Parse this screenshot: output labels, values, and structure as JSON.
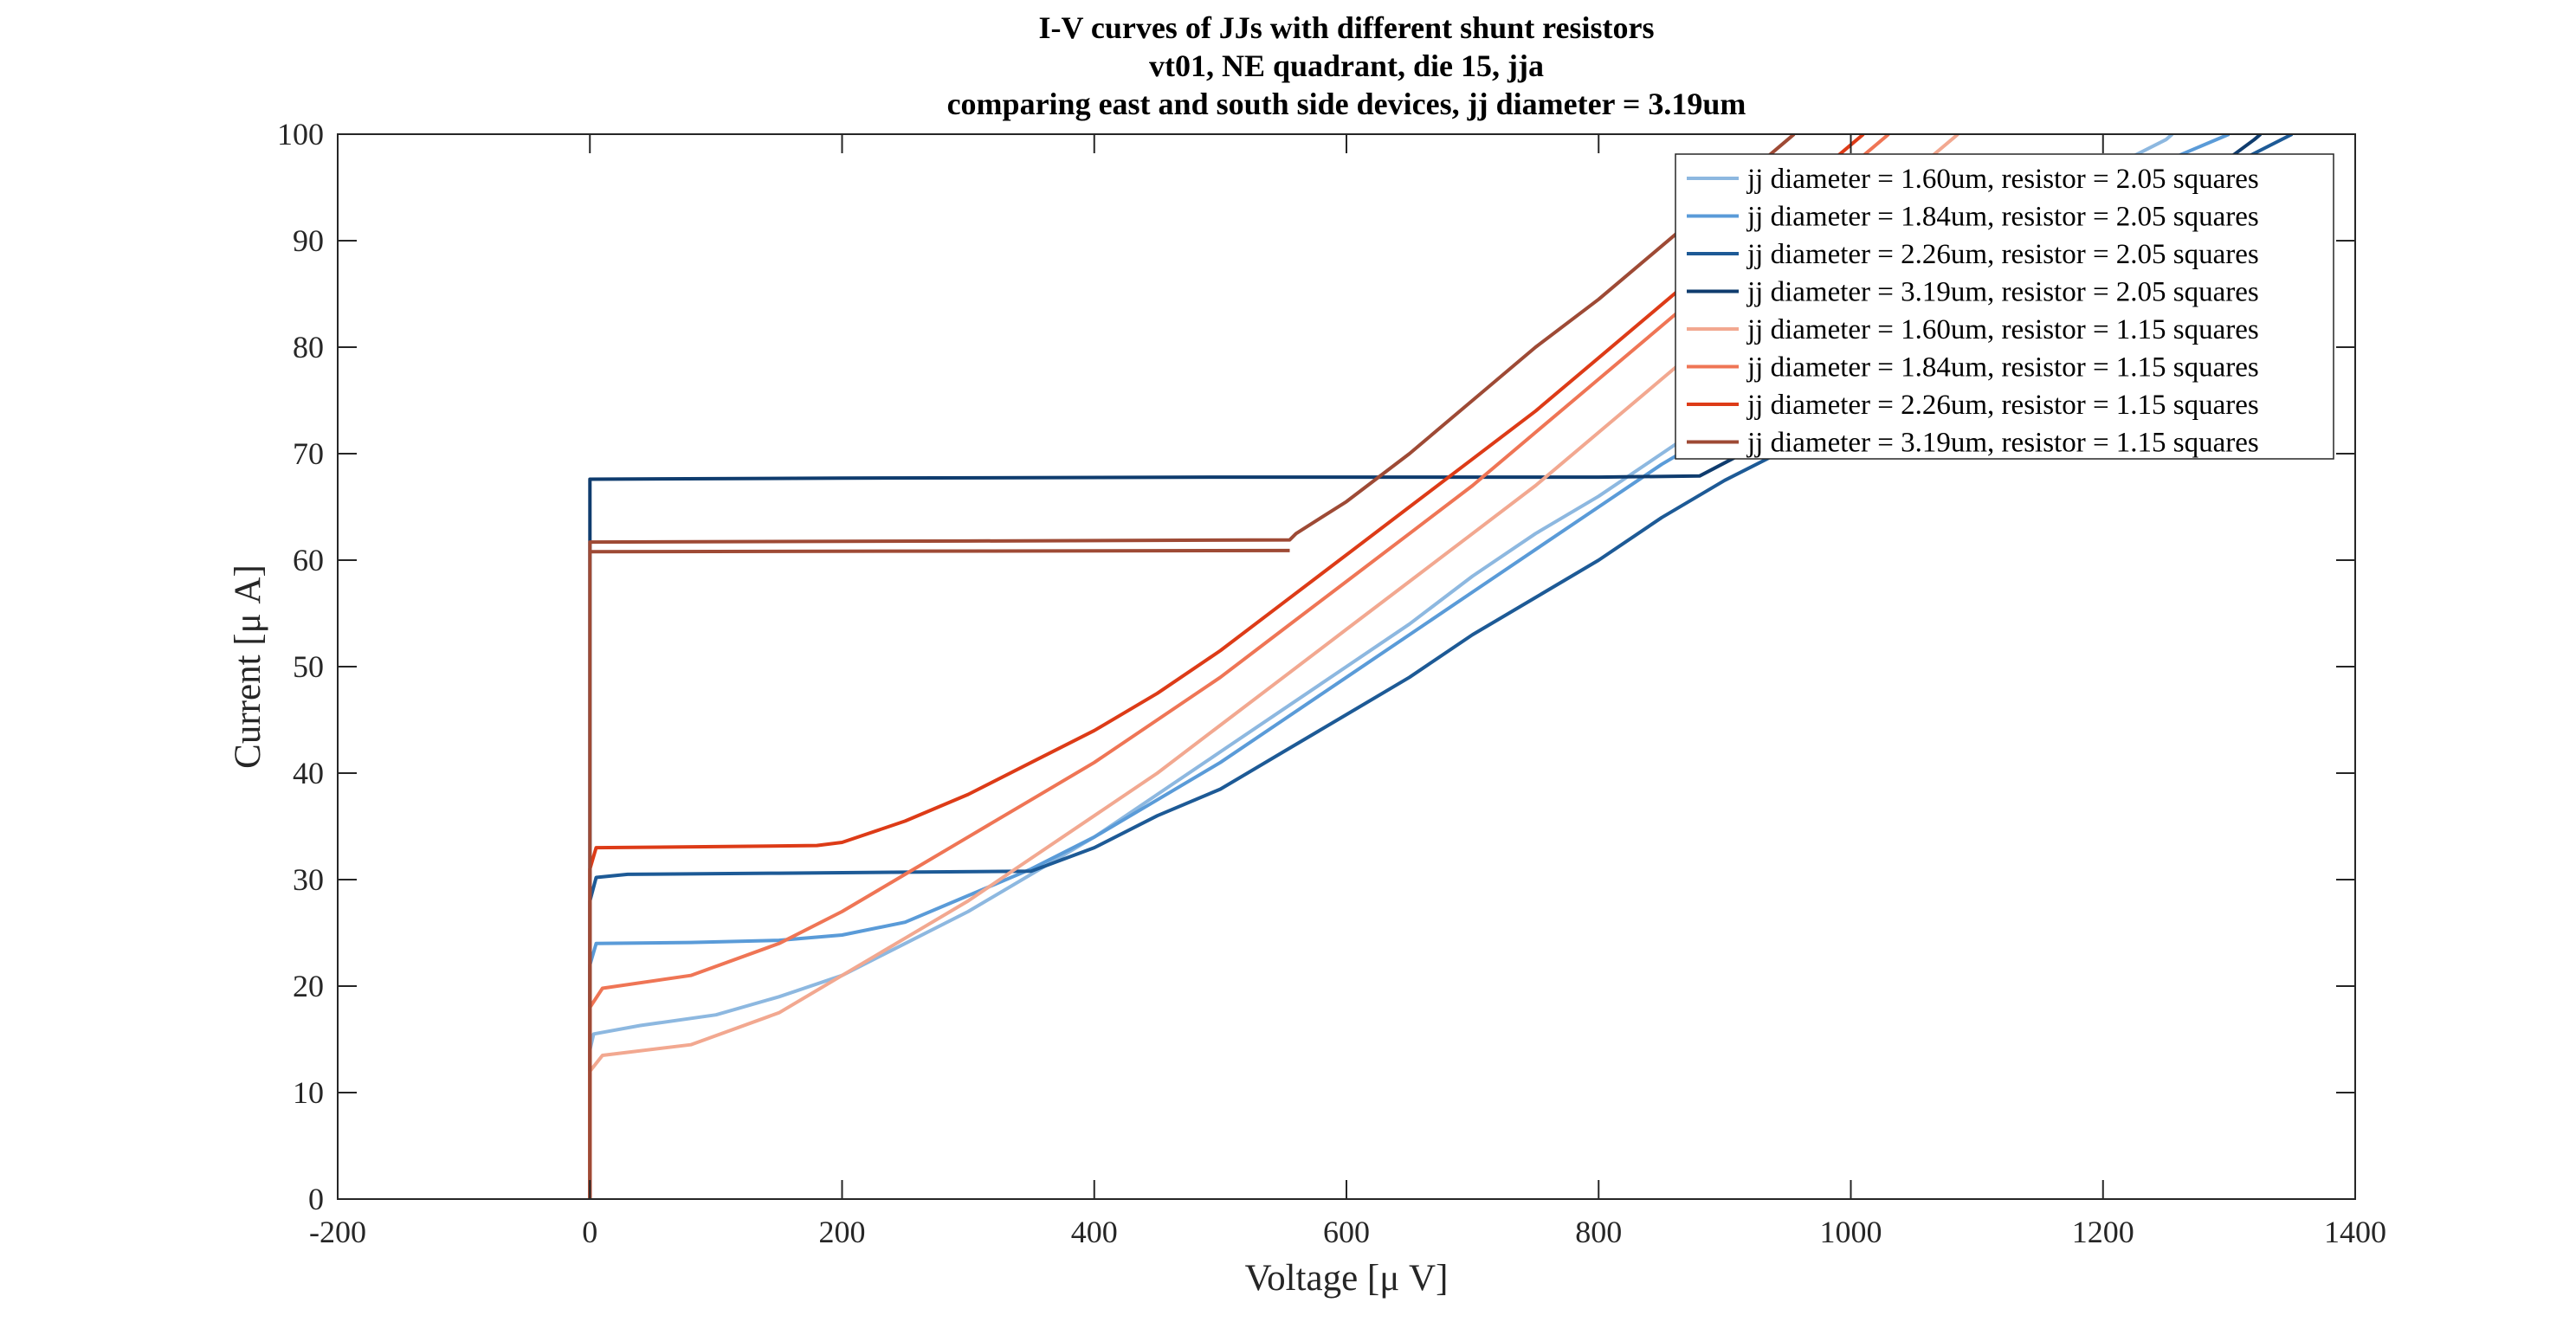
{
  "chart_data": {
    "type": "line",
    "title": [
      "I-V curves of JJs with different shunt resistors",
      "vt01, NE quadrant, die 15, jja",
      "comparing east and south side devices, jj diameter = 3.19um"
    ],
    "xlabel": "Voltage [μ V]",
    "ylabel": "Current [μ A]",
    "xlim": [
      -200,
      1400
    ],
    "ylim": [
      0,
      100
    ],
    "xticks": [
      -200,
      0,
      200,
      400,
      600,
      800,
      1000,
      1200,
      1400
    ],
    "yticks": [
      0,
      10,
      20,
      30,
      40,
      50,
      60,
      70,
      80,
      90,
      100
    ],
    "grid": false,
    "legend_position": "top-right",
    "series": [
      {
        "name": "jj diameter = 1.60um, resistor = 2.05 squares",
        "color": "#8db8e0",
        "points": [
          [
            0,
            0
          ],
          [
            0,
            14
          ],
          [
            3,
            15.5
          ],
          [
            40,
            16.3
          ],
          [
            100,
            17.3
          ],
          [
            150,
            19
          ],
          [
            200,
            21
          ],
          [
            250,
            24
          ],
          [
            300,
            27
          ],
          [
            350,
            30.5
          ],
          [
            400,
            34
          ],
          [
            450,
            38
          ],
          [
            500,
            42
          ],
          [
            550,
            46
          ],
          [
            600,
            50
          ],
          [
            650,
            54
          ],
          [
            700,
            58.5
          ],
          [
            750,
            62.5
          ],
          [
            800,
            66
          ],
          [
            850,
            70
          ],
          [
            900,
            74
          ],
          [
            950,
            78
          ],
          [
            1000,
            82
          ],
          [
            1050,
            86
          ],
          [
            1100,
            89.5
          ],
          [
            1150,
            93
          ],
          [
            1200,
            96.5
          ],
          [
            1250,
            99.5
          ],
          [
            1255,
            100
          ]
        ]
      },
      {
        "name": "jj diameter = 1.84um, resistor = 2.05 squares",
        "color": "#5a9bd8",
        "points": [
          [
            0,
            0
          ],
          [
            0,
            22
          ],
          [
            5,
            24
          ],
          [
            80,
            24.1
          ],
          [
            150,
            24.3
          ],
          [
            200,
            24.8
          ],
          [
            250,
            26
          ],
          [
            300,
            28.5
          ],
          [
            350,
            31
          ],
          [
            400,
            34
          ],
          [
            450,
            37.5
          ],
          [
            500,
            41
          ],
          [
            550,
            45
          ],
          [
            600,
            49
          ],
          [
            650,
            53
          ],
          [
            700,
            57
          ],
          [
            750,
            61
          ],
          [
            800,
            65
          ],
          [
            850,
            69
          ],
          [
            900,
            72.5
          ],
          [
            950,
            76.5
          ],
          [
            1000,
            80.5
          ],
          [
            1050,
            84.5
          ],
          [
            1100,
            88
          ],
          [
            1150,
            91.5
          ],
          [
            1200,
            94.5
          ],
          [
            1250,
            97.5
          ],
          [
            1300,
            100
          ]
        ]
      },
      {
        "name": "jj diameter = 2.26um, resistor = 2.05 squares",
        "color": "#1d5a96",
        "points": [
          [
            0,
            0
          ],
          [
            0,
            28
          ],
          [
            5,
            30.2
          ],
          [
            30,
            30.5
          ],
          [
            150,
            30.6
          ],
          [
            250,
            30.7
          ],
          [
            350,
            30.8
          ],
          [
            400,
            33
          ],
          [
            450,
            36
          ],
          [
            500,
            38.5
          ],
          [
            550,
            42
          ],
          [
            600,
            45.5
          ],
          [
            650,
            49
          ],
          [
            700,
            53
          ],
          [
            750,
            56.5
          ],
          [
            800,
            60
          ],
          [
            850,
            64
          ],
          [
            900,
            67.5
          ],
          [
            950,
            70.5
          ],
          [
            1000,
            74.5
          ],
          [
            1050,
            78.5
          ],
          [
            1100,
            82.5
          ],
          [
            1150,
            86.5
          ],
          [
            1200,
            90
          ],
          [
            1250,
            93.5
          ],
          [
            1300,
            97
          ],
          [
            1350,
            100
          ]
        ]
      },
      {
        "name": "jj diameter = 3.19um, resistor = 2.05 squares",
        "color": "#0f3c6e",
        "points": [
          [
            0,
            0
          ],
          [
            0,
            60
          ],
          [
            0,
            67.6
          ],
          [
            200,
            67.7
          ],
          [
            500,
            67.8
          ],
          [
            800,
            67.8
          ],
          [
            880,
            67.9
          ],
          [
            930,
            71
          ],
          [
            980,
            74
          ],
          [
            1030,
            78
          ],
          [
            1080,
            81.5
          ],
          [
            1130,
            85
          ],
          [
            1180,
            89
          ],
          [
            1230,
            92.5
          ],
          [
            1280,
            96
          ],
          [
            1320,
            99.5
          ],
          [
            1325,
            100
          ]
        ]
      },
      {
        "name": "jj diameter = 1.60um, resistor = 1.15 squares",
        "color": "#f2a890",
        "points": [
          [
            0,
            0
          ],
          [
            0,
            12
          ],
          [
            10,
            13.5
          ],
          [
            80,
            14.5
          ],
          [
            150,
            17.5
          ],
          [
            200,
            21
          ],
          [
            250,
            24.5
          ],
          [
            300,
            28
          ],
          [
            350,
            32
          ],
          [
            400,
            36
          ],
          [
            450,
            40
          ],
          [
            500,
            44.5
          ],
          [
            550,
            49
          ],
          [
            600,
            53.5
          ],
          [
            650,
            58
          ],
          [
            700,
            62.5
          ],
          [
            750,
            67
          ],
          [
            800,
            72
          ],
          [
            850,
            77
          ],
          [
            900,
            82
          ],
          [
            950,
            87
          ],
          [
            1000,
            92
          ],
          [
            1050,
            96.5
          ],
          [
            1085,
            100
          ]
        ]
      },
      {
        "name": "jj diameter = 1.84um, resistor = 1.15 squares",
        "color": "#ef7555",
        "points": [
          [
            0,
            0
          ],
          [
            0,
            18
          ],
          [
            10,
            19.8
          ],
          [
            80,
            21
          ],
          [
            150,
            24
          ],
          [
            200,
            27
          ],
          [
            250,
            30.5
          ],
          [
            300,
            34
          ],
          [
            350,
            37.5
          ],
          [
            400,
            41
          ],
          [
            450,
            45
          ],
          [
            500,
            49
          ],
          [
            550,
            53.5
          ],
          [
            600,
            58
          ],
          [
            650,
            62.5
          ],
          [
            700,
            67
          ],
          [
            750,
            72
          ],
          [
            800,
            77
          ],
          [
            850,
            82
          ],
          [
            900,
            87
          ],
          [
            950,
            92
          ],
          [
            1000,
            97
          ],
          [
            1030,
            100
          ]
        ]
      },
      {
        "name": "jj diameter = 2.26um, resistor = 1.15 squares",
        "color": "#dd3b17",
        "points": [
          [
            0,
            0
          ],
          [
            0,
            31
          ],
          [
            5,
            33
          ],
          [
            100,
            33.1
          ],
          [
            180,
            33.2
          ],
          [
            200,
            33.5
          ],
          [
            250,
            35.5
          ],
          [
            300,
            38
          ],
          [
            350,
            41
          ],
          [
            400,
            44
          ],
          [
            450,
            47.5
          ],
          [
            500,
            51.5
          ],
          [
            550,
            56
          ],
          [
            600,
            60.5
          ],
          [
            650,
            65
          ],
          [
            700,
            69.5
          ],
          [
            750,
            74
          ],
          [
            800,
            79
          ],
          [
            850,
            84
          ],
          [
            900,
            89
          ],
          [
            950,
            94
          ],
          [
            1000,
            99
          ],
          [
            1010,
            100
          ]
        ]
      },
      {
        "name": "jj diameter = 3.19um, resistor = 1.15 squares",
        "color": "#9e4a35",
        "points": [
          [
            0,
            0
          ],
          [
            0,
            61
          ],
          [
            0,
            61.7
          ],
          [
            300,
            61.8
          ],
          [
            555,
            61.9
          ],
          [
            560,
            62.5
          ],
          [
            600,
            65.5
          ],
          [
            650,
            70
          ],
          [
            700,
            75
          ],
          [
            750,
            80
          ],
          [
            800,
            84.5
          ],
          [
            850,
            89.5
          ],
          [
            900,
            94.5
          ],
          [
            950,
            99.5
          ],
          [
            955,
            100
          ]
        ]
      }
    ],
    "extra_segments": [
      {
        "series_index": 7,
        "points": [
          [
            0,
            60.8
          ],
          [
            555,
            60.9
          ]
        ]
      }
    ]
  }
}
